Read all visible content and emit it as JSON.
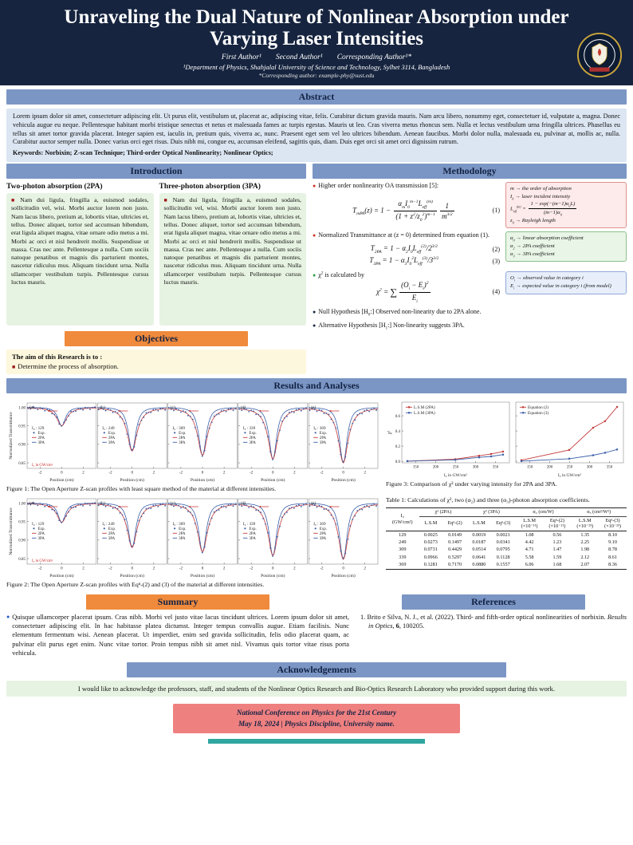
{
  "theme": {
    "header_navy": "#16243f",
    "bar_blue": "#7b96c4",
    "bar_orange": "#f08a3c",
    "footer_red": "#ef8080",
    "accent_teal": "#2fa6a0"
  },
  "poster": {
    "title": "Unraveling the Dual Nature of Nonlinear Absorption under Varying Laser Intensities",
    "authors": [
      "First Author¹",
      "Second Author¹",
      "Corresponding Author¹*"
    ],
    "affiliation": "¹Department of Physics, Shahjalal University of Science and Technology, Sylhet 3114, Bangladesh",
    "email": "*Corresponding author: example-phy@sust.edu"
  },
  "abstract": {
    "heading": "Abstract",
    "body": "Lorem ipsum dolor sit amet, consectetuer adipiscing elit. Ut purus elit, vestibulum ut, placerat ac, adipiscing vitae, felis. Curabitur dictum gravida mauris. Nam arcu libero, nonummy eget, consectetuer id, vulputate a, magna. Donec vehicula augue eu neque. Pellentesque habitant morbi tristique senectus et netus et malesuada fames ac turpis egestas. Mauris ut leo. Cras viverra metus rhoncus sem. Nulla et lectus vestibulum urna fringilla ultrices. Phasellus eu tellus sit amet tortor gravida placerat. Integer sapien est, iaculis in, pretium quis, viverra ac, nunc. Praesent eget sem vel leo ultrices bibendum. Aenean faucibus. Morbi dolor nulla, malesuada eu, pulvinar at, mollis ac, nulla. Curabitur auctor semper nulla. Donec varius orci eget risus. Duis nibh mi, congue eu, accumsan eleifend, sagittis quis, diam. Duis eget orci sit amet orci dignissim rutrum.",
    "keywords": "Keywords: Norbixin; Z-scan Technique; Third-order Optical Nonlinearity; Nonlinear Optics;"
  },
  "introduction": {
    "heading": "Introduction",
    "col1_title": "Two-photon absorption (2PA)",
    "col2_title": "Three-photon absorption (3PA)",
    "body": "Nam dui ligula, fringilla a, euismod sodales, sollicitudin vel, wisi. Morbi auctor lorem non justo. Nam lacus libero, pretium at, lobortis vitae, ultricies et, tellus. Donec aliquet, tortor sed accumsan bibendum, erat ligula aliquet magna, vitae ornare odio metus a mi. Morbi ac orci et nisl hendrerit mollis. Suspendisse ut massa. Cras nec ante. Pellentesque a nulla. Cum sociis natoque penatibus et magnis dis parturient montes, nascetur ridiculus mus. Aliquam tincidunt urna. Nulla ullamcorper vestibulum turpis. Pellentesque cursus luctus mauris."
  },
  "objectives": {
    "heading": "Objectives",
    "lead": "The aim of this Research is to :",
    "item": "Determine the process of absorption."
  },
  "methodology": {
    "heading": "Methodology",
    "bullet1": "Higher order nonlinearity OA transmission [5]:",
    "eq1": "T_{mPA}(z) = 1 − \\frac{α_mI_0^{m−1}L_{eff}^{(m)}}{(1 + z^2/z_0^2)^{m−1}}\\frac{1}{m^{3/2}}",
    "eq1_no": "(1)",
    "bullet2": "Normalized Transmittance at (z = 0) determined from equation (1).",
    "eq2": "T_{2PA} = 1 − α_2I_0L_{eff}^{(2)}/2^{3/2}",
    "eq2_no": "(2)",
    "eq3": "T_{3PA} = 1 − α_3I_0^2L_{eff}^{(3)}/3^{3/2}",
    "eq3_no": "(3)",
    "bullet3": "χ^2 is calculated by",
    "eq4": "χ^2 = \\sum\\frac{(O_i − E_i)^2}{E_i}",
    "eq4_no": "(4)",
    "bullet4": "Null Hypothesis [H_0:] Observed non-linearity due to 2PA alone.",
    "bullet5": "Alternative Hypothesis [H_1:] Non-linearity suggests 3PA.",
    "note1": [
      "m → the order of absorption",
      "I_0 → laser incident intensity",
      "L_{eff}^{(m)} = \\frac{1 − exp(−(m−1)α_0L)}{(m−1)α_0}",
      "z_0 → Rayleigh length"
    ],
    "note2": [
      "α_0 → linear absorption coefficient",
      "α_2 → 2PA coefficient",
      "α_3 → 3PA coefficient"
    ],
    "note3": [
      "O_i → observed value in category i",
      "E_i → expected value in category i (from model)"
    ]
  },
  "results": {
    "heading": "Results and Analyses"
  },
  "chart_data": [
    {
      "id": "figure-1",
      "render": "zscan",
      "type": "line",
      "caption": "Figure 1: The Open Aperture Z-scan profiles with least square method of the material at different intensities.",
      "ylabel": "Normalized Transmittance",
      "xlabel": "Position (cm)",
      "xlim": [
        -3.2,
        3.2
      ],
      "ylim": [
        0.835,
        1.012
      ],
      "xticks": [
        -2,
        0,
        2
      ],
      "yticks": [
        1.0,
        0.95,
        0.9,
        0.85
      ],
      "legend": [
        "Exp.",
        "2PA",
        "3PA"
      ],
      "intensity_prefix": "I₀ :",
      "intensity_note": "I₀ in GW/cm²",
      "colors": {
        "exp": "#3a5fa8",
        "pa2": "#c43c3c",
        "pa3": "#3a5fa8"
      },
      "subplots": [
        {
          "tag": "(a)",
          "intensity": 129,
          "dip": 0.05
        },
        {
          "tag": "(b)",
          "intensity": 249,
          "dip": 0.118
        },
        {
          "tag": "(c)",
          "intensity": 309,
          "dip": 0.13
        },
        {
          "tag": "(d)",
          "intensity": 339,
          "dip": 0.14
        },
        {
          "tag": "(e)",
          "intensity": 369,
          "dip": 0.15
        }
      ]
    },
    {
      "id": "figure-2",
      "render": "zscan",
      "type": "line",
      "caption": "Figure 2: The Open Aperture Z-scan profiles with Eqⁿ-(2) and (3) of the material at different intensities.",
      "ylabel": "Normalized Transmittance",
      "xlabel": "Position (cm)",
      "xlim": [
        -3.2,
        3.2
      ],
      "ylim": [
        0.835,
        1.012
      ],
      "xticks": [
        -2,
        0,
        2
      ],
      "yticks": [
        1.0,
        0.95,
        0.9,
        0.85
      ],
      "legend": [
        "Exp.",
        "2PA",
        "3PA"
      ],
      "intensity_prefix": "I₀ :",
      "intensity_note": "I₀ in GW/cm²",
      "colors": {
        "exp": "#3a5fa8",
        "pa2": "#c43c3c",
        "pa3": "#3a5fa8"
      },
      "subplots": [
        {
          "tag": "(a)",
          "intensity": 129,
          "dip": 0.052
        },
        {
          "tag": "(b)",
          "intensity": 249,
          "dip": 0.12
        },
        {
          "tag": "(c)",
          "intensity": 309,
          "dip": 0.132
        },
        {
          "tag": "(d)",
          "intensity": 339,
          "dip": 0.142
        },
        {
          "tag": "(e)",
          "intensity": 369,
          "dip": 0.152
        }
      ]
    },
    {
      "id": "figure-3",
      "render": "chi",
      "type": "line",
      "caption": "Figure 3: Comparison of χ² under varying intensity for 2PA and 3PA.",
      "ylabel": "χ²",
      "xlabel": "I₀ in GW/cm²",
      "x": [
        129,
        249,
        309,
        339,
        369
      ],
      "xlim": [
        115,
        385
      ],
      "ylim": [
        -0.02,
        0.78
      ],
      "xticks": [
        150,
        200,
        250,
        300,
        350
      ],
      "yticks": [
        0.0,
        0.2,
        0.4,
        0.6
      ],
      "panels": [
        {
          "series": [
            {
              "name": "L.S.M (2PA)",
              "color": "#c43c3c",
              "values": [
                0.0025,
                0.0273,
                0.0731,
                0.0966,
                0.1281
              ]
            },
            {
              "name": "L.S.M (3PA)",
              "color": "#3a5fa8",
              "values": [
                0.0019,
                0.0187,
                0.0514,
                0.0641,
                0.088
              ]
            }
          ]
        },
        {
          "series": [
            {
              "name": "Equation (2)",
              "color": "#c43c3c",
              "values": [
                0.0149,
                0.1497,
                0.4429,
                0.5297,
                0.717
              ]
            },
            {
              "name": "Equation (3)",
              "color": "#3a5fa8",
              "values": [
                0.0021,
                0.0341,
                0.0795,
                0.1128,
                0.1557
              ]
            }
          ]
        }
      ]
    }
  ],
  "table1": {
    "caption": "Table 1: Calculations of χ², two (α₂) and three (α₃)-photon absorption coefficients.",
    "col0_top": "I₀",
    "col0_sub": "(GW/cm²)",
    "groups": [
      {
        "title": "χ² (2PA)",
        "subs": [
          [
            "L.S.M"
          ],
          [
            "Eqⁿ-(2)"
          ]
        ]
      },
      {
        "title": "χ² (3PA)",
        "subs": [
          [
            "L.S.M"
          ],
          [
            "Eqⁿ-(3)"
          ]
        ]
      },
      {
        "title": "α₂ (cm/W)",
        "subs": [
          [
            "L.S.M",
            "(×10⁻¹¹)"
          ],
          [
            "Eqⁿ-(2)",
            "(×10⁻¹¹)"
          ]
        ]
      },
      {
        "title": "α₃ (cm³/W²)",
        "subs": [
          [
            "L.S.M",
            "(×10⁻²³)"
          ],
          [
            "Eqⁿ-(3)",
            "(×10⁻²³)"
          ]
        ]
      }
    ],
    "rows": [
      [
        "129",
        "0.0025",
        "0.0149",
        "0.0019",
        "0.0021",
        "1.08",
        "0.56",
        "1.35",
        "8.10"
      ],
      [
        "249",
        "0.0273",
        "0.1497",
        "0.0187",
        "0.0341",
        "4.42",
        "1.23",
        "2.25",
        "9.10"
      ],
      [
        "309",
        "0.0731",
        "0.4429",
        "0.0514",
        "0.0795",
        "4.71",
        "1.47",
        "1.98",
        "8.78"
      ],
      [
        "339",
        "0.0966",
        "0.5297",
        "0.0641",
        "0.1128",
        "5.58",
        "1.59",
        "2.12",
        "8.61"
      ],
      [
        "369",
        "0.1281",
        "0.7170",
        "0.0880",
        "0.1557",
        "6.06",
        "1.68",
        "2.07",
        "8.36"
      ]
    ]
  },
  "summary": {
    "heading": "Summary",
    "body": "Quisque ullamcorper placerat ipsum. Cras nibh. Morbi vel justo vitae lacus tincidunt ultrices. Lorem ipsum dolor sit amet, consectetuer adipiscing elit. In hac habitasse platea dictumst. Integer tempus convallis augue. Etiam facilisis. Nunc elementum fermentum wisi. Aenean placerat. Ut imperdiet, enim sed gravida sollicitudin, felis odio placerat quam, ac pulvinar elit purus eget enim. Nunc vitae tortor. Proin tempus nibh sit amet nisl. Vivamus quis tortor vitae risus porta vehicula."
  },
  "references": {
    "heading": "References",
    "prefix": "1. ",
    "pre": "Brito e Silva, N. J., et al. (2022).  Third- and fifth-order optical nonlinearities of norbixin. ",
    "journal": "Results in Optics",
    "sep": ", ",
    "volume": "6",
    "post": ", 100205."
  },
  "acknowledgements": {
    "heading": "Acknowledgements",
    "body": "I would like to acknowledge the professors, staff, and students of the Nonlinear Optics Research and Bio-Optics Research Laboratory who provided support during this work."
  },
  "footer": {
    "line1": "National Conference on Physics for the 21st Century",
    "line2": "May 18, 2024  |  Physics Discipline, University name."
  }
}
